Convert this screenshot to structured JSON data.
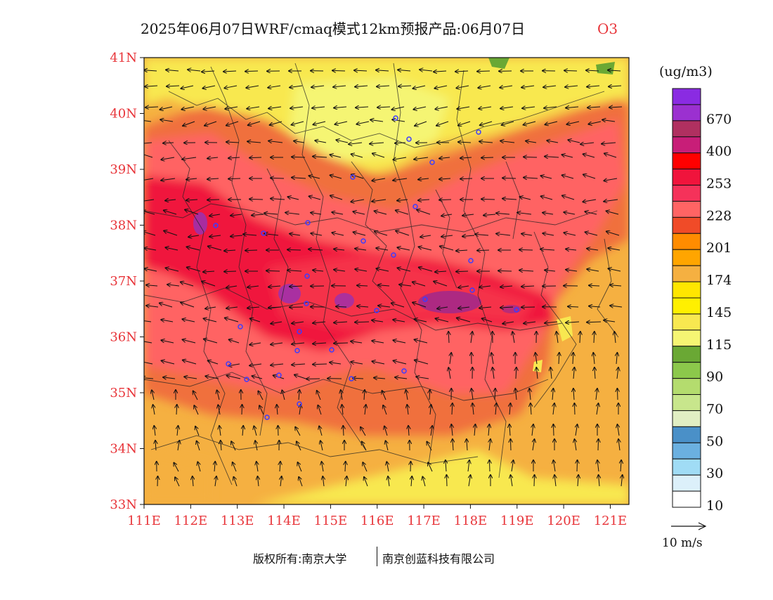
{
  "title": {
    "main": "2025年06月07日WRF/cmaq模式12km预报产品:06月07日",
    "pollutant": "O3"
  },
  "map": {
    "lat_labels": [
      "41N",
      "40N",
      "39N",
      "38N",
      "37N",
      "36N",
      "35N",
      "34N",
      "33N"
    ],
    "lon_labels": [
      "111E",
      "112E",
      "113E",
      "114E",
      "115E",
      "116E",
      "117E",
      "118E",
      "119E",
      "120E",
      "121E"
    ],
    "lat_range": [
      33,
      41
    ],
    "lon_range": [
      111,
      121.4
    ],
    "tick_color": "#e8353a",
    "station_color": "#3c3cff"
  },
  "legend": {
    "unit": "(ug/m3)",
    "levels": [
      {
        "label": "",
        "color": "#8a2be2"
      },
      {
        "label": "670",
        "color": "#9b30d0"
      },
      {
        "label": "",
        "color": "#b03060"
      },
      {
        "label": "400",
        "color": "#c81e78"
      },
      {
        "label": "",
        "color": "#ff0000"
      },
      {
        "label": "253",
        "color": "#f0143c"
      },
      {
        "label": "",
        "color": "#f5325a"
      },
      {
        "label": "228",
        "color": "#ff6464"
      },
      {
        "label": "",
        "color": "#f04b28"
      },
      {
        "label": "201",
        "color": "#ff8c00"
      },
      {
        "label": "",
        "color": "#ffa500"
      },
      {
        "label": "174",
        "color": "#f5b041"
      },
      {
        "label": "",
        "color": "#ffe600"
      },
      {
        "label": "145",
        "color": "#fff000"
      },
      {
        "label": "",
        "color": "#f8e850"
      },
      {
        "label": "115",
        "color": "#f5f573"
      },
      {
        "label": "",
        "color": "#6aa834"
      },
      {
        "label": "90",
        "color": "#8cc84b"
      },
      {
        "label": "",
        "color": "#b4dc6e"
      },
      {
        "label": "70",
        "color": "#c8e68c"
      },
      {
        "label": "",
        "color": "#e1eec3"
      },
      {
        "label": "50",
        "color": "#4a90c8"
      },
      {
        "label": "",
        "color": "#6bb0e0"
      },
      {
        "label": "30",
        "color": "#a0dcf5"
      },
      {
        "label": "",
        "color": "#dcf0fa"
      },
      {
        "label": "10",
        "color": "#ffffff"
      }
    ],
    "wind_ref": "10 m/s"
  },
  "footer": {
    "left": "版权所有:南京大学",
    "right": "南京创蓝科技有限公司"
  }
}
